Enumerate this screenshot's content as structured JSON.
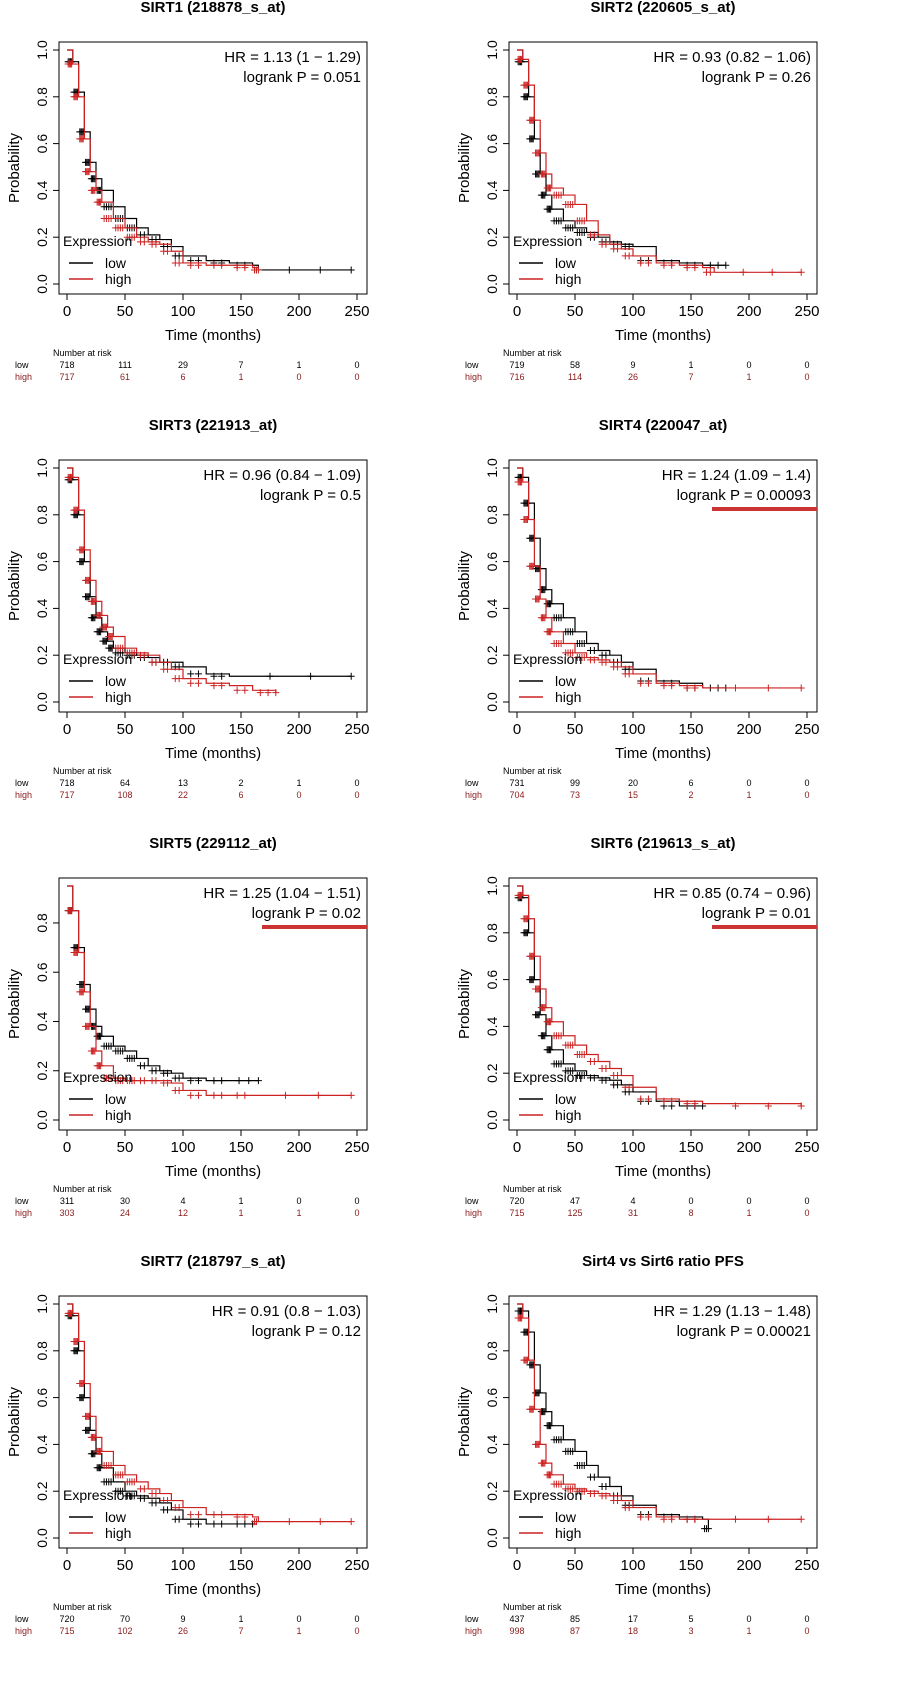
{
  "figure": {
    "ylabel": "Probability",
    "xlabel": "Time (months)",
    "legend_title": "Expression",
    "legend_low": "low",
    "legend_high": "high",
    "risk_title": "Number at risk",
    "risk_low_label": "low",
    "risk_high_label": "high",
    "xticks": [
      "0",
      "50",
      "100",
      "150",
      "200",
      "250"
    ],
    "colors": {
      "low": "#000000",
      "high": "#cc2222",
      "highlight": "#cc3333",
      "risk_high_text": "#8b1a1a"
    }
  },
  "chart_data": [
    {
      "type": "line",
      "title": "SIRT1 (218878_s_at)",
      "hr_text": "HR = 1.13 (1 − 1.29)",
      "p_text": "logrank P = 0.051",
      "highlight": false,
      "xlim": [
        0,
        250
      ],
      "ylim": [
        0,
        1
      ],
      "yticks": [
        "0.0",
        "0.2",
        "0.4",
        "0.6",
        "0.8",
        "1.0"
      ],
      "series": [
        {
          "name": "low",
          "x": [
            0,
            5,
            10,
            15,
            20,
            25,
            30,
            40,
            50,
            60,
            70,
            80,
            90,
            100,
            120,
            140,
            160,
            165,
            245
          ],
          "y": [
            1.0,
            0.95,
            0.82,
            0.65,
            0.52,
            0.45,
            0.4,
            0.33,
            0.28,
            0.24,
            0.21,
            0.19,
            0.16,
            0.12,
            0.1,
            0.09,
            0.08,
            0.06,
            0.06
          ]
        },
        {
          "name": "high",
          "x": [
            0,
            5,
            10,
            15,
            20,
            25,
            30,
            40,
            50,
            60,
            70,
            80,
            90,
            100,
            120,
            140,
            160,
            165
          ],
          "y": [
            1.0,
            0.94,
            0.8,
            0.62,
            0.48,
            0.4,
            0.35,
            0.28,
            0.24,
            0.2,
            0.18,
            0.17,
            0.14,
            0.09,
            0.08,
            0.08,
            0.07,
            0.06
          ]
        }
      ],
      "risk_low": [
        "718",
        "111",
        "29",
        "7",
        "1",
        "0"
      ],
      "risk_high": [
        "717",
        "61",
        "6",
        "1",
        "0",
        "0"
      ]
    },
    {
      "type": "line",
      "title": "SIRT2 (220605_s_at)",
      "hr_text": "HR = 0.93 (0.82 − 1.06)",
      "p_text": "logrank P = 0.26",
      "highlight": false,
      "xlim": [
        0,
        250
      ],
      "ylim": [
        0,
        1
      ],
      "yticks": [
        "0.0",
        "0.2",
        "0.4",
        "0.6",
        "0.8",
        "1.0"
      ],
      "series": [
        {
          "name": "low",
          "x": [
            0,
            5,
            10,
            15,
            20,
            25,
            30,
            40,
            50,
            60,
            70,
            80,
            90,
            100,
            120,
            140,
            160,
            180
          ],
          "y": [
            1.0,
            0.95,
            0.8,
            0.62,
            0.47,
            0.38,
            0.32,
            0.27,
            0.24,
            0.22,
            0.2,
            0.18,
            0.17,
            0.16,
            0.1,
            0.09,
            0.08,
            0.08
          ]
        },
        {
          "name": "high",
          "x": [
            0,
            5,
            10,
            15,
            20,
            25,
            30,
            40,
            50,
            60,
            70,
            80,
            90,
            100,
            120,
            140,
            160,
            170,
            245
          ],
          "y": [
            1.0,
            0.96,
            0.85,
            0.7,
            0.56,
            0.47,
            0.41,
            0.38,
            0.34,
            0.27,
            0.21,
            0.17,
            0.15,
            0.12,
            0.09,
            0.08,
            0.07,
            0.05,
            0.05
          ]
        }
      ],
      "risk_low": [
        "719",
        "58",
        "9",
        "1",
        "0",
        "0"
      ],
      "risk_high": [
        "716",
        "114",
        "26",
        "7",
        "1",
        "0"
      ]
    },
    {
      "type": "line",
      "title": "SIRT3 (221913_at)",
      "hr_text": "HR = 0.96 (0.84 − 1.09)",
      "p_text": "logrank P = 0.5",
      "highlight": false,
      "xlim": [
        0,
        250
      ],
      "ylim": [
        0,
        1
      ],
      "yticks": [
        "0.0",
        "0.2",
        "0.4",
        "0.6",
        "0.8",
        "1.0"
      ],
      "series": [
        {
          "name": "low",
          "x": [
            0,
            5,
            10,
            15,
            20,
            25,
            30,
            35,
            40,
            50,
            60,
            70,
            80,
            90,
            100,
            120,
            140,
            245
          ],
          "y": [
            1.0,
            0.95,
            0.8,
            0.6,
            0.45,
            0.36,
            0.3,
            0.26,
            0.23,
            0.21,
            0.2,
            0.19,
            0.17,
            0.17,
            0.15,
            0.12,
            0.11,
            0.11
          ]
        },
        {
          "name": "high",
          "x": [
            0,
            5,
            10,
            15,
            20,
            25,
            30,
            35,
            40,
            50,
            60,
            70,
            80,
            90,
            100,
            120,
            140,
            160,
            180
          ],
          "y": [
            1.0,
            0.96,
            0.82,
            0.65,
            0.52,
            0.43,
            0.37,
            0.32,
            0.28,
            0.23,
            0.21,
            0.2,
            0.17,
            0.14,
            0.1,
            0.08,
            0.07,
            0.05,
            0.04
          ]
        }
      ],
      "risk_low": [
        "718",
        "64",
        "13",
        "2",
        "1",
        "0"
      ],
      "risk_high": [
        "717",
        "108",
        "22",
        "6",
        "0",
        "0"
      ]
    },
    {
      "type": "line",
      "title": "SIRT4 (220047_at)",
      "hr_text": "HR = 1.24 (1.09 − 1.4)",
      "p_text": "logrank P = 0.00093",
      "highlight": true,
      "xlim": [
        0,
        250
      ],
      "ylim": [
        0,
        1
      ],
      "yticks": [
        "0.0",
        "0.2",
        "0.4",
        "0.6",
        "0.8",
        "1.0"
      ],
      "series": [
        {
          "name": "low",
          "x": [
            0,
            5,
            10,
            15,
            20,
            25,
            30,
            40,
            50,
            60,
            70,
            80,
            90,
            100,
            120,
            140,
            160,
            180
          ],
          "y": [
            1.0,
            0.96,
            0.85,
            0.7,
            0.57,
            0.48,
            0.42,
            0.36,
            0.3,
            0.25,
            0.22,
            0.2,
            0.17,
            0.14,
            0.09,
            0.08,
            0.06,
            0.06
          ]
        },
        {
          "name": "high",
          "x": [
            0,
            5,
            10,
            15,
            20,
            25,
            30,
            40,
            50,
            60,
            70,
            80,
            90,
            100,
            120,
            140,
            160,
            245
          ],
          "y": [
            1.0,
            0.94,
            0.78,
            0.58,
            0.44,
            0.36,
            0.3,
            0.25,
            0.21,
            0.19,
            0.18,
            0.17,
            0.15,
            0.12,
            0.08,
            0.07,
            0.06,
            0.06
          ]
        }
      ],
      "risk_low": [
        "731",
        "99",
        "20",
        "6",
        "0",
        "0"
      ],
      "risk_high": [
        "704",
        "73",
        "15",
        "2",
        "1",
        "0"
      ]
    },
    {
      "type": "line",
      "title": "SIRT5 (229112_at)",
      "hr_text": "HR = 1.25 (1.04 − 1.51)",
      "p_text": "logrank P = 0.02",
      "highlight": true,
      "xlim": [
        0,
        250
      ],
      "ylim": [
        0,
        0.95
      ],
      "yticks": [
        "0.0",
        "0.2",
        "0.4",
        "0.6",
        "0.8"
      ],
      "series": [
        {
          "name": "low",
          "x": [
            0,
            5,
            10,
            15,
            20,
            25,
            30,
            40,
            50,
            60,
            70,
            80,
            90,
            100,
            120,
            140,
            165
          ],
          "y": [
            0.95,
            0.85,
            0.7,
            0.55,
            0.45,
            0.38,
            0.34,
            0.3,
            0.28,
            0.25,
            0.22,
            0.2,
            0.19,
            0.17,
            0.16,
            0.16,
            0.16
          ]
        },
        {
          "name": "high",
          "x": [
            0,
            5,
            10,
            15,
            20,
            25,
            30,
            40,
            50,
            60,
            70,
            80,
            90,
            100,
            120,
            140,
            160,
            245
          ],
          "y": [
            0.95,
            0.85,
            0.68,
            0.52,
            0.38,
            0.28,
            0.22,
            0.17,
            0.16,
            0.16,
            0.16,
            0.16,
            0.15,
            0.12,
            0.1,
            0.1,
            0.1,
            0.1
          ]
        }
      ],
      "risk_low": [
        "311",
        "30",
        "4",
        "1",
        "0",
        "0"
      ],
      "risk_high": [
        "303",
        "24",
        "12",
        "1",
        "1",
        "0"
      ]
    },
    {
      "type": "line",
      "title": "SIRT6 (219613_s_at)",
      "hr_text": "HR = 0.85 (0.74 − 0.96)",
      "p_text": "logrank P = 0.01",
      "highlight": true,
      "xlim": [
        0,
        250
      ],
      "ylim": [
        0,
        1
      ],
      "yticks": [
        "0.0",
        "0.2",
        "0.4",
        "0.6",
        "0.8",
        "1.0"
      ],
      "series": [
        {
          "name": "low",
          "x": [
            0,
            5,
            10,
            15,
            20,
            25,
            30,
            40,
            50,
            60,
            70,
            80,
            90,
            100,
            120,
            140,
            160
          ],
          "y": [
            1.0,
            0.95,
            0.8,
            0.6,
            0.45,
            0.36,
            0.3,
            0.24,
            0.21,
            0.19,
            0.18,
            0.17,
            0.15,
            0.12,
            0.08,
            0.06,
            0.06
          ]
        },
        {
          "name": "high",
          "x": [
            0,
            5,
            10,
            15,
            20,
            25,
            30,
            40,
            50,
            60,
            70,
            80,
            90,
            100,
            120,
            140,
            160,
            245
          ],
          "y": [
            1.0,
            0.96,
            0.86,
            0.7,
            0.56,
            0.48,
            0.42,
            0.36,
            0.32,
            0.28,
            0.25,
            0.22,
            0.19,
            0.14,
            0.09,
            0.08,
            0.07,
            0.06
          ]
        }
      ],
      "risk_low": [
        "720",
        "47",
        "4",
        "0",
        "0",
        "0"
      ],
      "risk_high": [
        "715",
        "125",
        "31",
        "8",
        "1",
        "0"
      ]
    },
    {
      "type": "line",
      "title": "SIRT7 (218797_s_at)",
      "hr_text": "HR = 0.91 (0.8 − 1.03)",
      "p_text": "logrank P = 0.12",
      "highlight": false,
      "xlim": [
        0,
        250
      ],
      "ylim": [
        0,
        1
      ],
      "yticks": [
        "0.0",
        "0.2",
        "0.4",
        "0.6",
        "0.8",
        "1.0"
      ],
      "series": [
        {
          "name": "low",
          "x": [
            0,
            5,
            10,
            15,
            20,
            25,
            30,
            40,
            50,
            60,
            70,
            80,
            90,
            100,
            120,
            140,
            160
          ],
          "y": [
            1.0,
            0.95,
            0.8,
            0.6,
            0.46,
            0.36,
            0.3,
            0.24,
            0.2,
            0.18,
            0.17,
            0.15,
            0.12,
            0.08,
            0.06,
            0.06,
            0.06
          ]
        },
        {
          "name": "high",
          "x": [
            0,
            5,
            10,
            15,
            20,
            25,
            30,
            40,
            50,
            60,
            70,
            80,
            90,
            100,
            120,
            140,
            160,
            165,
            245
          ],
          "y": [
            1.0,
            0.96,
            0.84,
            0.66,
            0.52,
            0.43,
            0.37,
            0.31,
            0.27,
            0.24,
            0.21,
            0.19,
            0.16,
            0.13,
            0.1,
            0.1,
            0.09,
            0.07,
            0.07
          ]
        }
      ],
      "risk_low": [
        "720",
        "70",
        "9",
        "1",
        "0",
        "0"
      ],
      "risk_high": [
        "715",
        "102",
        "26",
        "7",
        "1",
        "0"
      ]
    },
    {
      "type": "line",
      "title": "Sirt4 vs Sirt6 ratio PFS",
      "hr_text": "HR = 1.29 (1.13 − 1.48)",
      "p_text": "logrank P = 0.00021",
      "highlight": false,
      "xlim": [
        0,
        250
      ],
      "ylim": [
        0,
        1
      ],
      "yticks": [
        "0.0",
        "0.2",
        "0.4",
        "0.6",
        "0.8",
        "1.0"
      ],
      "series": [
        {
          "name": "low",
          "x": [
            0,
            5,
            10,
            15,
            20,
            25,
            30,
            40,
            50,
            60,
            70,
            80,
            90,
            100,
            120,
            140,
            160,
            165
          ],
          "y": [
            1.0,
            0.97,
            0.88,
            0.74,
            0.62,
            0.54,
            0.48,
            0.42,
            0.37,
            0.31,
            0.26,
            0.22,
            0.18,
            0.14,
            0.1,
            0.09,
            0.08,
            0.04
          ]
        },
        {
          "name": "high",
          "x": [
            0,
            5,
            10,
            15,
            20,
            25,
            30,
            40,
            50,
            60,
            70,
            80,
            90,
            100,
            120,
            140,
            160,
            245
          ],
          "y": [
            1.0,
            0.94,
            0.76,
            0.55,
            0.4,
            0.32,
            0.27,
            0.23,
            0.21,
            0.2,
            0.19,
            0.18,
            0.16,
            0.13,
            0.09,
            0.08,
            0.08,
            0.08
          ]
        }
      ],
      "risk_low": [
        "437",
        "85",
        "17",
        "5",
        "0",
        "0"
      ],
      "risk_high": [
        "998",
        "87",
        "18",
        "3",
        "1",
        "0"
      ]
    }
  ]
}
